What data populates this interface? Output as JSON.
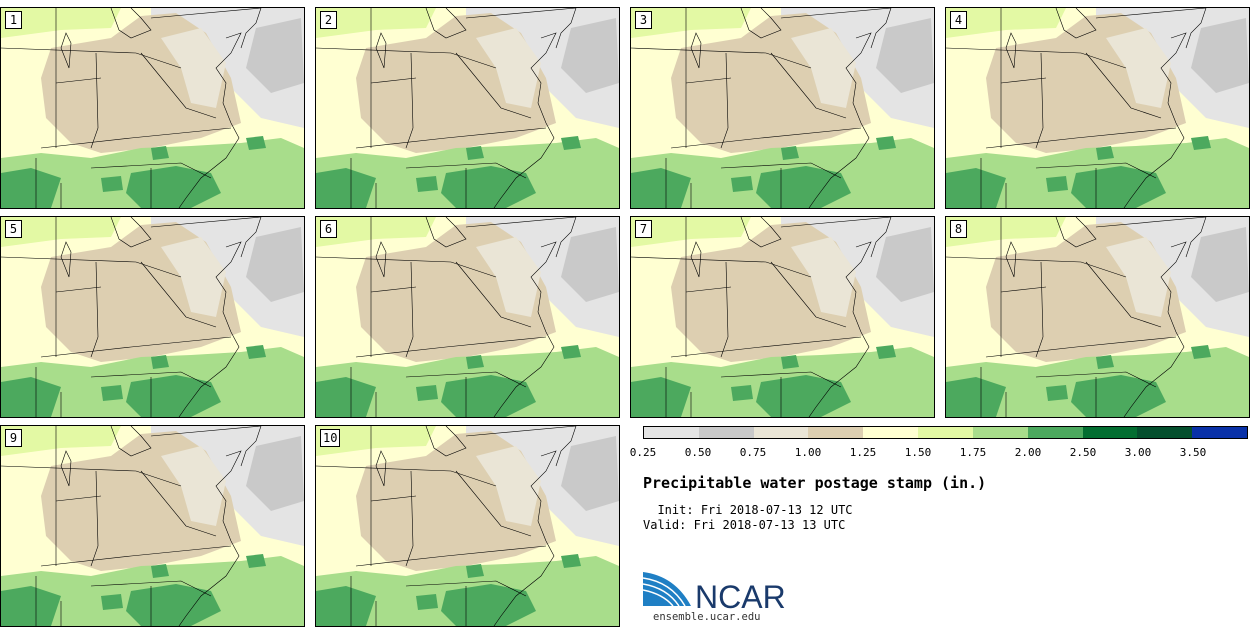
{
  "title": "Precipitable water postage stamp (in.)",
  "init_label": "Init:",
  "init_time": "Fri 2018-07-13 12 UTC",
  "valid_label": "Valid:",
  "valid_time": "Fri 2018-07-13 13 UTC",
  "members": [
    "1",
    "2",
    "3",
    "4",
    "5",
    "6",
    "7",
    "8",
    "9",
    "10"
  ],
  "colorbar": {
    "colors": [
      "#e4e4e4",
      "#c9c9c9",
      "#eae5d6",
      "#ddcfb1",
      "#ffffd2",
      "#e3f9a4",
      "#a8dd8b",
      "#4ca95e",
      "#036e31",
      "#044f2d",
      "#0931a8"
    ],
    "tick_labels": [
      "0.25",
      "0.50",
      "0.75",
      "1.00",
      "1.25",
      "1.50",
      "1.75",
      "2.00",
      "2.50",
      "3.00",
      "3.50"
    ]
  },
  "logo": {
    "text": "NCAR",
    "url_text": "ensemble.ucar.edu"
  }
}
